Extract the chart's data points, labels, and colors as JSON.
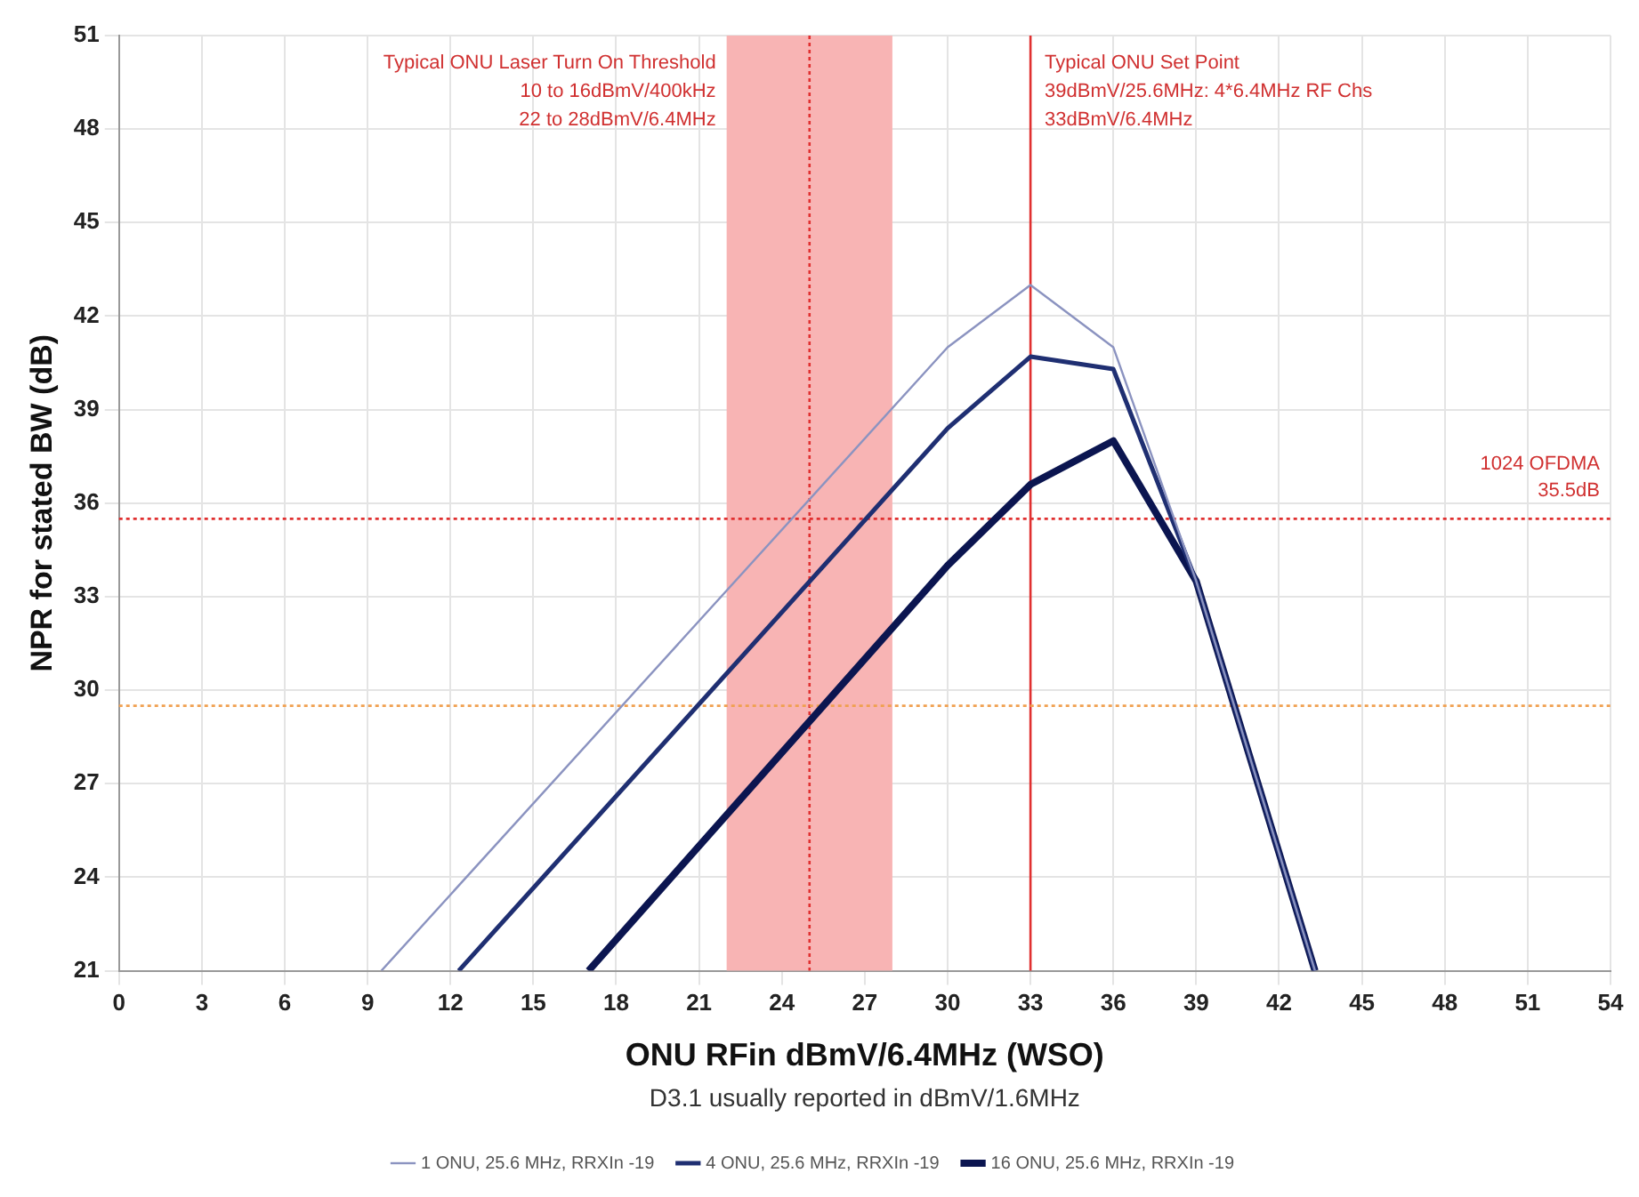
{
  "chart_data": {
    "type": "line",
    "xlabel": "ONU RFin dBmV/6.4MHz (WSO)",
    "ylabel": "NPR for stated BW (dB)",
    "xlim": [
      0,
      54
    ],
    "xticks": [
      0,
      3,
      6,
      9,
      12,
      15,
      18,
      21,
      24,
      27,
      30,
      33,
      36,
      39,
      42,
      45,
      48,
      51,
      54
    ],
    "ylim": [
      21,
      51
    ],
    "yticks": [
      21,
      24,
      27,
      30,
      33,
      36,
      39,
      42,
      45,
      48,
      51
    ],
    "grid": true,
    "legend": "bottom",
    "marker": "none",
    "line_style": "solid",
    "series": [
      {
        "name": "1 ONU, 25.6 MHz, RRXIn -19",
        "color": "#8b93c0",
        "x": [
          9.5,
          30,
          33,
          36,
          39,
          43.3
        ],
        "values": [
          21,
          41,
          43,
          41,
          33.5,
          21
        ]
      },
      {
        "name": "4 ONU, 25.6 MHz, RRXIn -19",
        "color": "#1f2f72",
        "x": [
          12.3,
          30,
          33,
          36,
          39,
          43.3
        ],
        "values": [
          21,
          38.4,
          40.7,
          40.3,
          33.5,
          21
        ]
      },
      {
        "name": "16 ONU, 25.6 MHz, RRXIn -19",
        "color": "#0b1550",
        "x": [
          17,
          30,
          33,
          36,
          39,
          43.3
        ],
        "values": [
          21,
          34,
          36.6,
          38,
          33.5,
          21
        ]
      }
    ],
    "bands": [
      {
        "axis": "x",
        "from": 22,
        "to": 28,
        "color": "#f8b4b4",
        "label": "Typical ONU Laser Turn On Threshold\n10 to 16dBmV/400kHz\n22 to 28dBmV/6.4MHz"
      }
    ],
    "ref_lines": [
      {
        "axis": "x",
        "value": 25,
        "color": "#e03030",
        "line_style": "dotted"
      },
      {
        "axis": "x",
        "value": 33,
        "color": "#e03030",
        "line_style": "solid",
        "label": "Typical ONU Set Point\n39dBmV/25.6MHz: 4*6.4MHz RF Chs\n33dBmV/6.4MHz"
      },
      {
        "axis": "y",
        "value": 35.5,
        "color": "#e03030",
        "line_style": "dotted",
        "label": "1024 OFDMA\n35.5dB"
      },
      {
        "axis": "y",
        "value": 29.5,
        "color": "#f0a050",
        "line_style": "dotted"
      }
    ],
    "annotations": [
      "D3.1 usually reported in dBmV/1.6MHz"
    ]
  }
}
